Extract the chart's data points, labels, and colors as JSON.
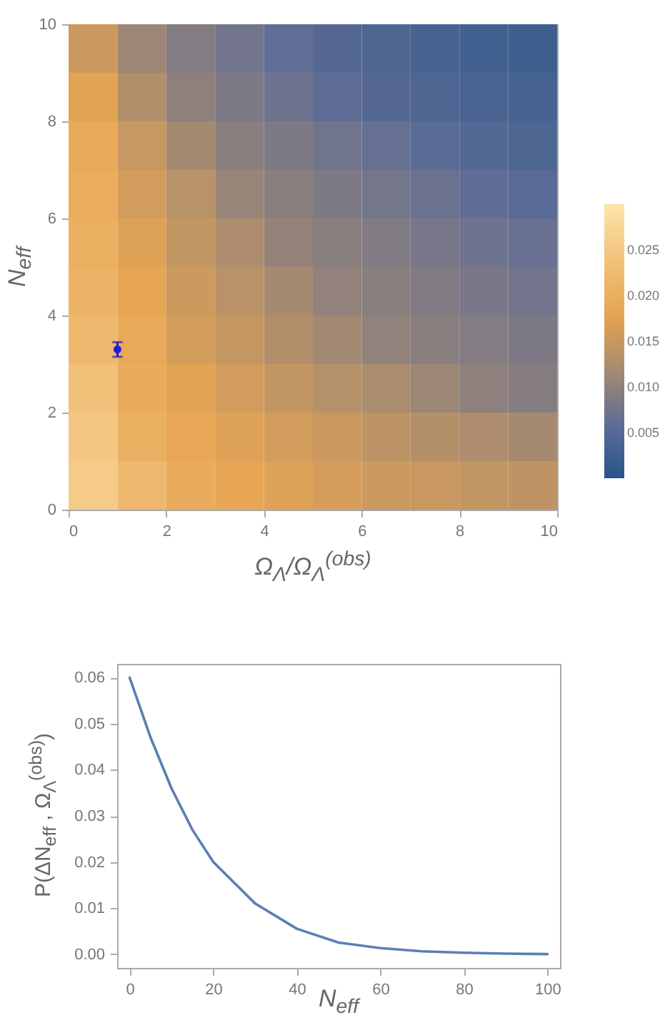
{
  "chart_data": [
    {
      "type": "heatmap",
      "xlabel": "Ω$_{Λ}$/Ω$_{Λ}$$^{(obs)}$",
      "ylabel": "N$_{eff}$",
      "x": [
        0.5,
        1.5,
        2.5,
        3.5,
        4.5,
        5.5,
        6.5,
        7.5,
        8.5,
        9.5
      ],
      "y": [
        9.5,
        8.5,
        7.5,
        6.5,
        5.5,
        4.5,
        3.5,
        2.5,
        1.5,
        0.5
      ],
      "cells": [
        [
          0.0155,
          0.011,
          0.009,
          0.0076,
          0.0062,
          0.0049,
          0.0042,
          0.0036,
          0.003,
          0.0026
        ],
        [
          0.0175,
          0.013,
          0.0098,
          0.0085,
          0.0072,
          0.006,
          0.0049,
          0.0043,
          0.0038,
          0.0033
        ],
        [
          0.019,
          0.015,
          0.0117,
          0.0095,
          0.0085,
          0.0075,
          0.0065,
          0.0055,
          0.0047,
          0.0042
        ],
        [
          0.0196,
          0.016,
          0.0135,
          0.0108,
          0.0095,
          0.0085,
          0.0077,
          0.0069,
          0.0061,
          0.0053
        ],
        [
          0.02,
          0.0172,
          0.0145,
          0.0125,
          0.0104,
          0.0095,
          0.0088,
          0.008,
          0.0073,
          0.0067
        ],
        [
          0.0208,
          0.018,
          0.0155,
          0.0136,
          0.0118,
          0.0102,
          0.0095,
          0.0088,
          0.0082,
          0.0076
        ],
        [
          0.022,
          0.0188,
          0.0162,
          0.0146,
          0.013,
          0.0115,
          0.0101,
          0.0095,
          0.009,
          0.0085
        ],
        [
          0.0235,
          0.0195,
          0.0175,
          0.016,
          0.0145,
          0.0133,
          0.0122,
          0.011,
          0.0098,
          0.0092
        ],
        [
          0.0248,
          0.0201,
          0.0185,
          0.0172,
          0.016,
          0.0152,
          0.014,
          0.0132,
          0.0125,
          0.0118
        ],
        [
          0.0255,
          0.0222,
          0.0195,
          0.0183,
          0.0172,
          0.0163,
          0.0155,
          0.0151,
          0.0145,
          0.0141
        ]
      ],
      "cticks": [
        0.005,
        {
          "value": 0.01,
          "label": "0.010"
        },
        0.015,
        {
          "value": 0.02,
          "label": "0.020"
        },
        0.025
      ],
      "colors": [
        "#27548a",
        "#5f6d96",
        "#a88b6f",
        "#e6a552",
        "#f2c27c",
        "#fde5a8"
      ],
      "clim": [
        0,
        0.03
      ],
      "xlim": [
        0,
        10
      ],
      "ylim": [
        0,
        10
      ],
      "xticks": [
        0,
        2,
        4,
        6,
        8,
        10
      ],
      "yticks": [
        0,
        2,
        4,
        6,
        8,
        10
      ],
      "series": [
        {
          "type": "scatter",
          "x": [
            1
          ],
          "values": [
            3.3
          ],
          "errors": [
            0.15
          ],
          "color": "#1c1ce0",
          "marker": "circle"
        }
      ]
    },
    {
      "type": "line",
      "xlabel": "N$_{eff}$",
      "ylabel": "P(ΔN$_{eff}$ , Ω$_{Λ}$$^{(obs)}$)",
      "xlim": [
        -3,
        103
      ],
      "ylim": [
        -0.003,
        0.063
      ],
      "xticks": [
        0,
        20,
        40,
        60,
        80,
        100
      ],
      "yticks": [
        {
          "value": 0,
          "label": "0.00"
        },
        0.01,
        0.02,
        0.03,
        0.04,
        0.05,
        0.06
      ],
      "series": [
        {
          "x": [
            0,
            5,
            10,
            15,
            20,
            25,
            30,
            40,
            50,
            60,
            70,
            80,
            90,
            100
          ],
          "values": [
            0.06,
            0.047,
            0.036,
            0.027,
            0.02,
            0.0155,
            0.011,
            0.0055,
            0.0025,
            0.0013,
            0.0006,
            0.0003,
            0.0001,
            0
          ],
          "color": "#5b7fb5",
          "line_style": "solid"
        }
      ]
    }
  ]
}
